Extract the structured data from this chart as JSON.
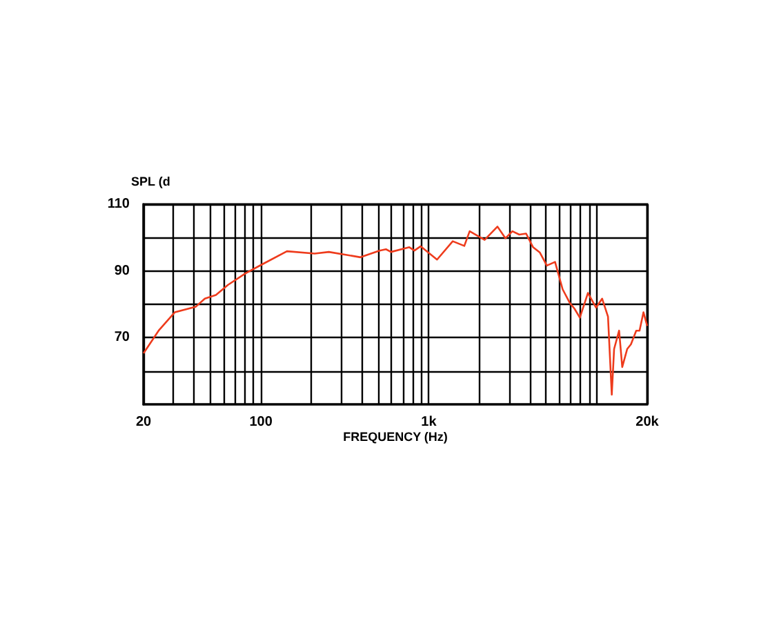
{
  "chart_data": {
    "type": "line",
    "ylabel": "SPL (d",
    "xlabel": "FREQUENCY (Hz)",
    "log": "x",
    "grid": true,
    "marker": "none",
    "line_style": "solid",
    "xlim": [
      20,
      20000
    ],
    "xticks": [
      20,
      {
        "value": 30,
        "label": null
      },
      {
        "value": 40,
        "label": null
      },
      {
        "value": 50,
        "label": null
      },
      {
        "value": 60,
        "label": null
      },
      {
        "value": 70,
        "label": null
      },
      {
        "value": 80,
        "label": null
      },
      {
        "value": 90,
        "label": null
      },
      100,
      {
        "value": 200,
        "label": null
      },
      {
        "value": 300,
        "label": null
      },
      {
        "value": 400,
        "label": null
      },
      {
        "value": 500,
        "label": null
      },
      {
        "value": 600,
        "label": null
      },
      {
        "value": 700,
        "label": null
      },
      {
        "value": 800,
        "label": null
      },
      {
        "value": 900,
        "label": null
      },
      {
        "value": 1000,
        "label": "1k"
      },
      {
        "value": 2000,
        "label": null
      },
      {
        "value": 3000,
        "label": null
      },
      {
        "value": 4000,
        "label": null
      },
      {
        "value": 5000,
        "label": null
      },
      {
        "value": 6000,
        "label": null
      },
      {
        "value": 7000,
        "label": null
      },
      {
        "value": 8000,
        "label": null
      },
      {
        "value": 9000,
        "label": null
      },
      {
        "value": 10000,
        "label": null
      },
      {
        "value": 20000,
        "label": "20k"
      }
    ],
    "ylim": [
      50,
      110
    ],
    "yticks": [
      {
        "value": 60,
        "label": null
      },
      70,
      {
        "value": 80,
        "label": null
      },
      90,
      {
        "value": 100,
        "label": null
      },
      110
    ],
    "series": [
      {
        "color": "#ee3b1c",
        "x": [
          20,
          24.6,
          30.7,
          41,
          46.4,
          54,
          63.6,
          81,
          102,
          143,
          209,
          254,
          392,
          509,
          556,
          596,
          766,
          821,
          895,
          1120,
          1389,
          1628,
          1752,
          2151,
          2565,
          2860,
          3148,
          3460,
          3800,
          4180,
          4590,
          5050,
          5650,
          6270,
          6920,
          7370,
          7940,
          8870,
          9920,
          10780,
          11680,
          12300,
          12700,
          13600,
          14200,
          15200,
          16000,
          17200,
          18000,
          19000,
          20000
        ],
        "values": [
          65.3,
          72.1,
          77.6,
          79.3,
          81.7,
          82.8,
          85.8,
          89.3,
          92.0,
          95.9,
          95.2,
          95.7,
          94.1,
          96.1,
          96.5,
          95.7,
          97.1,
          96.1,
          97.4,
          93.4,
          98.9,
          97.5,
          101.9,
          99.3,
          103.3,
          99.8,
          101.9,
          100.9,
          101.2,
          97.1,
          95.5,
          91.6,
          92.7,
          84.5,
          80.4,
          78.7,
          76.0,
          83.4,
          79.0,
          81.7,
          76.3,
          52.9,
          66.6,
          72.1,
          61.2,
          66.6,
          68.0,
          72.1,
          72.1,
          77.6,
          73.5
        ]
      }
    ]
  }
}
